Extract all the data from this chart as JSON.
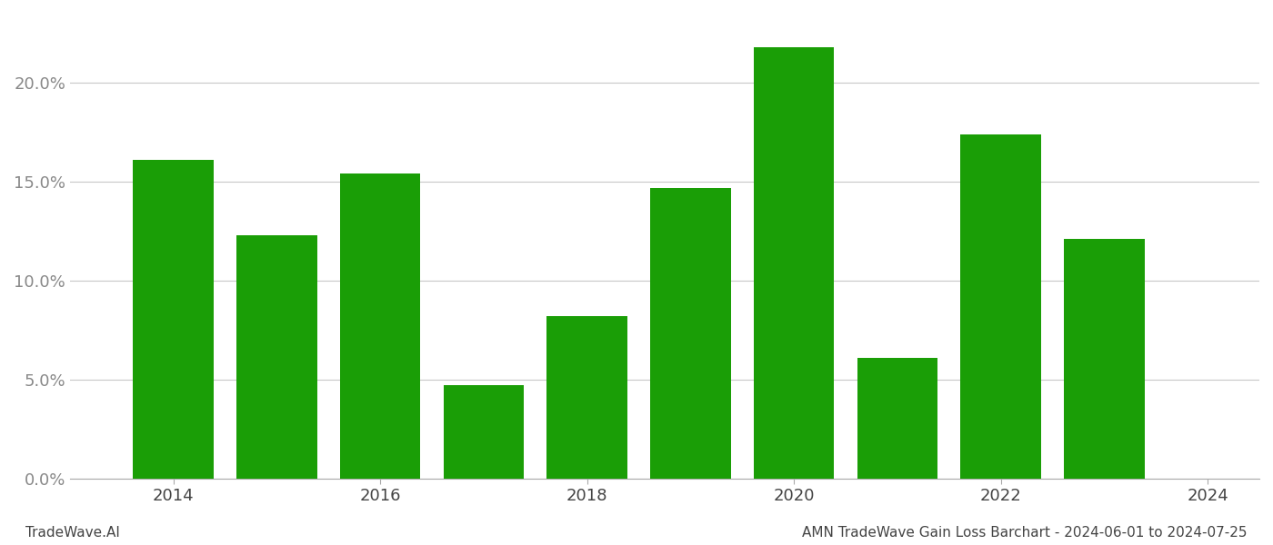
{
  "years": [
    2014,
    2015,
    2016,
    2017,
    2018,
    2019,
    2020,
    2021,
    2022,
    2023
  ],
  "values": [
    0.161,
    0.123,
    0.154,
    0.047,
    0.082,
    0.147,
    0.218,
    0.061,
    0.174,
    0.121
  ],
  "bar_color": "#1a9e06",
  "background_color": "#ffffff",
  "grid_color": "#c8c8c8",
  "ylim": [
    0,
    0.235
  ],
  "yticks": [
    0.0,
    0.05,
    0.1,
    0.15,
    0.2
  ],
  "ytick_labels": [
    "0.0%",
    "5.0%",
    "10.0%",
    "15.0%",
    "20.0%"
  ],
  "xticks": [
    2014,
    2016,
    2018,
    2020,
    2022,
    2024
  ],
  "xtick_labels": [
    "2014",
    "2016",
    "2018",
    "2020",
    "2022",
    "2024"
  ],
  "xlim": [
    2013.0,
    2024.5
  ],
  "bar_width": 0.78,
  "footer_left": "TradeWave.AI",
  "footer_right": "AMN TradeWave Gain Loss Barchart - 2024-06-01 to 2024-07-25",
  "tick_fontsize": 13,
  "footer_fontsize": 11
}
